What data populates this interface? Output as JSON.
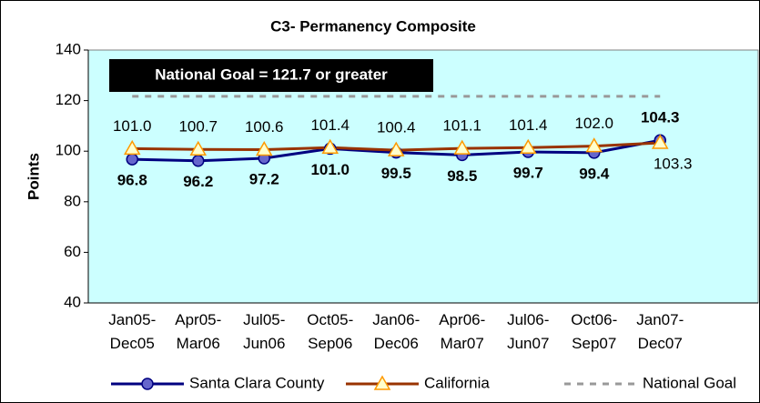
{
  "chart_data": {
    "type": "line",
    "title": "C3- Permanency Composite",
    "ylabel": "Points",
    "categories": [
      "Jan05-\nDec05",
      "Apr05-\nMar06",
      "Jul05-\nJun06",
      "Oct05-\nSep06",
      "Jan06-\nDec06",
      "Apr06-\nMar07",
      "Jul06-\nJun07",
      "Oct06-\nSep07",
      "Jan07-\nDec07"
    ],
    "series": [
      {
        "name": "Santa Clara County",
        "color": "#000080",
        "marker": "circle",
        "marker_color": "#6666cc",
        "values": [
          96.8,
          96.2,
          97.2,
          101.0,
          99.5,
          98.5,
          99.7,
          99.4,
          104.3
        ],
        "value_labels": [
          "96.8",
          "96.2",
          "97.2",
          "101.0",
          "99.5",
          "98.5",
          "99.7",
          "99.4",
          "104.3"
        ]
      },
      {
        "name": "California",
        "color": "#993300",
        "marker": "triangle",
        "marker_color": "#ff9900",
        "values": [
          101.0,
          100.7,
          100.6,
          101.4,
          100.4,
          101.1,
          101.4,
          102.0,
          103.3
        ],
        "value_labels": [
          "101.0",
          "100.7",
          "100.6",
          "101.4",
          "100.4",
          "101.1",
          "101.4",
          "102.0",
          "103.3"
        ]
      },
      {
        "name": "National Goal",
        "color": "#999999",
        "dashed": true,
        "values": [
          121.7,
          121.7,
          121.7,
          121.7,
          121.7,
          121.7,
          121.7,
          121.7,
          121.7
        ]
      }
    ],
    "annotation": "National Goal = 121.7 or greater",
    "ylim": [
      40,
      140
    ],
    "yticks": [
      40,
      60,
      80,
      100,
      120,
      140
    ],
    "legend": "bottom",
    "plot_background": "#ccffff"
  }
}
